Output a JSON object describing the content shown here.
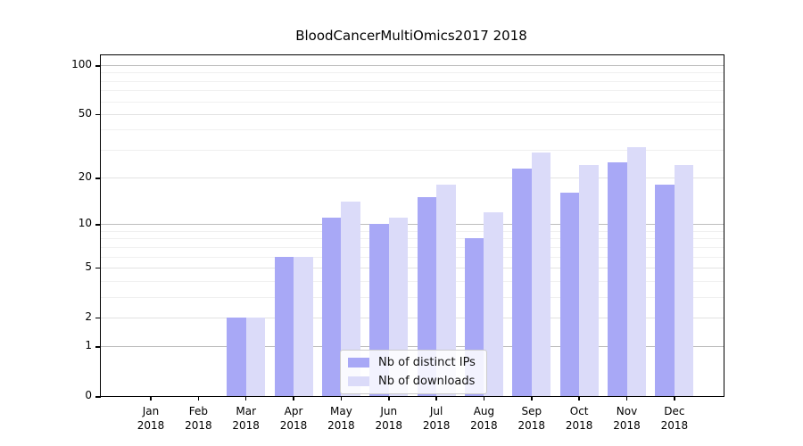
{
  "chart_data": {
    "type": "bar",
    "title": "BloodCancerMultiOmics2017 2018",
    "categories": [
      "Jan",
      "Feb",
      "Mar",
      "Apr",
      "May",
      "Jun",
      "Jul",
      "Aug",
      "Sep",
      "Oct",
      "Nov",
      "Dec"
    ],
    "year_label": "2018",
    "series": [
      {
        "name": "Nb of distinct IPs",
        "color": "#a8a8f6",
        "values": [
          0,
          0,
          2,
          6,
          11,
          10,
          15,
          8,
          23,
          16,
          25,
          18
        ]
      },
      {
        "name": "Nb of downloads",
        "color": "#dbdbf9",
        "values": [
          0,
          0,
          2,
          6,
          14,
          11,
          18,
          12,
          29,
          24,
          31,
          24
        ]
      }
    ],
    "y_axis": {
      "scale": "log10(1+v)",
      "ticks": [
        0,
        1,
        2,
        5,
        10,
        20,
        50,
        100
      ],
      "major_gridlines": [
        1,
        10,
        100
      ],
      "minor_gridlines": [
        3,
        4,
        6,
        7,
        8,
        9,
        30,
        40,
        60,
        70,
        80,
        90
      ],
      "ylim": [
        0,
        100
      ]
    },
    "legend": {
      "position": "bottom-center"
    }
  }
}
